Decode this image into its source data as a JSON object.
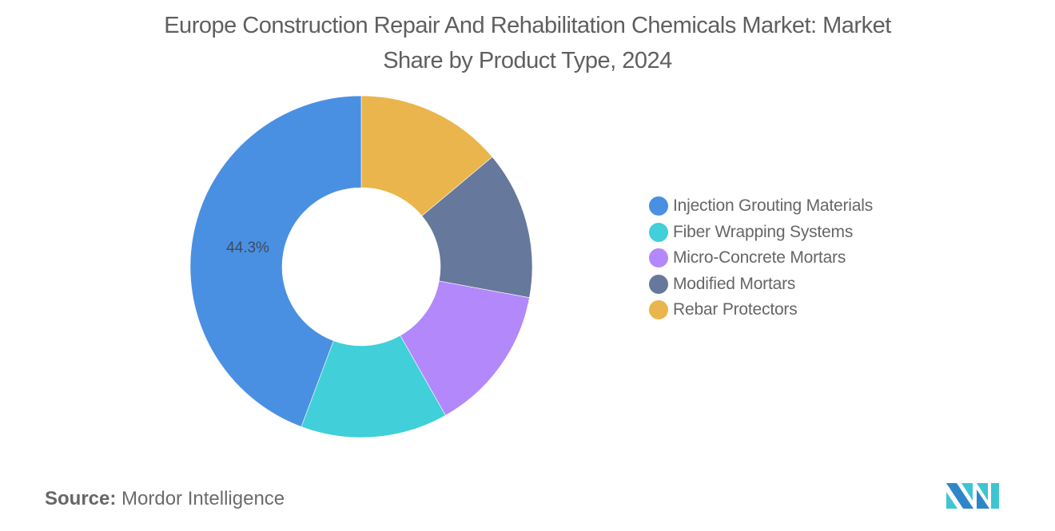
{
  "title": "Europe Construction Repair And Rehabilitation Chemicals Market: Market Share by Product Type, 2024",
  "title_lines": [
    "Europe Construction Repair And Rehabilitation Chemicals Market: Market",
    "Share by Product Type, 2024"
  ],
  "source": {
    "key": "Source:",
    "value": "Mordor Intelligence"
  },
  "logo": {
    "name": "mordor-intelligence-logo",
    "colors": [
      "#2e86c9",
      "#3ec5d1"
    ]
  },
  "chart_data": {
    "type": "pie",
    "variant": "donut",
    "title": "Europe Construction Repair And Rehabilitation Chemicals Market: Market Share by Product Type, 2024",
    "start_angle_deg": 0,
    "direction": "clockwise",
    "inner_radius_ratio": 0.46,
    "legend_position": "right",
    "categories": [
      "Injection Grouting Materials",
      "Fiber Wrapping Systems",
      "Micro-Concrete Mortars",
      "Modified Mortars",
      "Rebar Protectors"
    ],
    "values": [
      44.3,
      13.9,
      13.9,
      14.0,
      13.9
    ],
    "unit": "%",
    "colors": [
      "#4a90e2",
      "#41cfd9",
      "#b388fb",
      "#66789b",
      "#eab54c"
    ],
    "drawing_order_clockwise_from_top": [
      "Rebar Protectors",
      "Modified Mortars",
      "Micro-Concrete Mortars",
      "Fiber Wrapping Systems",
      "Injection Grouting Materials"
    ],
    "data_labels": [
      {
        "category": "Injection Grouting Materials",
        "text": "44.3%"
      }
    ]
  },
  "legend": {
    "items": [
      {
        "label": "Injection Grouting Materials",
        "color": "#4a90e2"
      },
      {
        "label": "Fiber Wrapping Systems",
        "color": "#41cfd9"
      },
      {
        "label": "Micro-Concrete Mortars",
        "color": "#b388fb"
      },
      {
        "label": "Modified Mortars",
        "color": "#66789b"
      },
      {
        "label": "Rebar Protectors",
        "color": "#eab54c"
      }
    ]
  }
}
